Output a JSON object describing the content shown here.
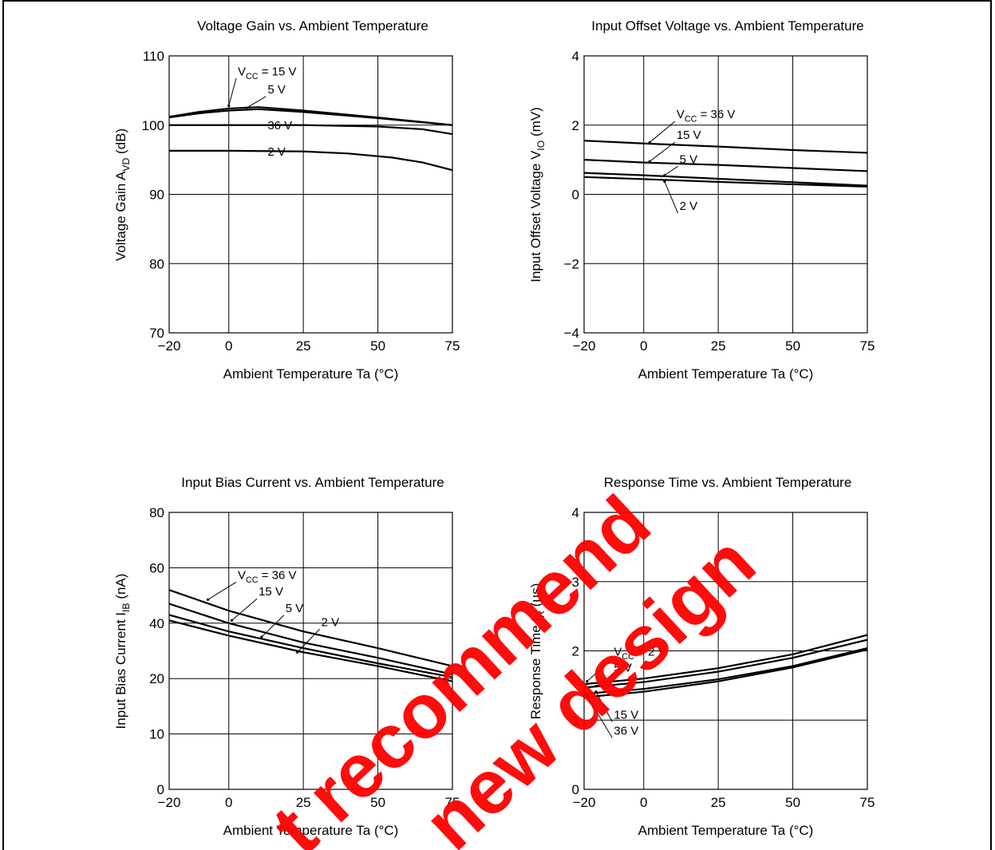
{
  "colors": {
    "line": "#000000",
    "watermark": "#ff0000"
  },
  "watermark": {
    "lines": [
      "t recommend",
      "new design"
    ]
  },
  "chart_data": [
    {
      "type": "line",
      "title": "Voltage Gain vs. Ambient Temperature",
      "xlabel": "Ambient Temperature  Ta  (°C)",
      "ylabel": {
        "main": "Voltage Gain  A",
        "sub": "VD",
        "tail": "  (dB)"
      },
      "xlim": [
        -20,
        75
      ],
      "ylim": [
        70,
        110
      ],
      "xticks": [
        -20,
        0,
        25,
        50,
        75
      ],
      "yticks": [
        70,
        80,
        90,
        100,
        110
      ],
      "xtick_labels": [
        "−20",
        "0",
        "25",
        "50",
        "75"
      ],
      "ytick_labels": [
        "70",
        "80",
        "90",
        "100",
        "110"
      ],
      "grid": true,
      "series": [
        {
          "name": "VCC = 15 V",
          "points": [
            [
              -20,
              101.2
            ],
            [
              -10,
              101.9
            ],
            [
              0,
              102.4
            ],
            [
              10,
              102.6
            ],
            [
              25,
              102.1
            ],
            [
              50,
              101.1
            ],
            [
              75,
              100.0
            ]
          ]
        },
        {
          "name": "5 V",
          "points": [
            [
              -20,
              101.1
            ],
            [
              -10,
              101.7
            ],
            [
              0,
              102.1
            ],
            [
              10,
              102.3
            ],
            [
              25,
              101.9
            ],
            [
              50,
              101.0
            ],
            [
              75,
              100.0
            ]
          ]
        },
        {
          "name": "36 V",
          "points": [
            [
              -20,
              100.0
            ],
            [
              0,
              100.0
            ],
            [
              25,
              100.0
            ],
            [
              50,
              99.8
            ],
            [
              65,
              99.4
            ],
            [
              75,
              98.7
            ]
          ]
        },
        {
          "name": "2 V",
          "points": [
            [
              -20,
              96.3
            ],
            [
              0,
              96.3
            ],
            [
              25,
              96.2
            ],
            [
              40,
              95.9
            ],
            [
              55,
              95.3
            ],
            [
              65,
              94.6
            ],
            [
              75,
              93.5
            ]
          ]
        }
      ],
      "annotations": [
        {
          "main": "V",
          "sub": "CC",
          "tail": " = 15 V",
          "x": 3,
          "y": 107.2,
          "tx": 0,
          "ty": 102.8
        },
        {
          "main": "5 V",
          "sub": "",
          "tail": "",
          "x": 13,
          "y": 104.6,
          "tx": 6,
          "ty": 102.5
        },
        {
          "main": "36 V",
          "sub": "",
          "tail": "",
          "x": 13,
          "y": 99.4
        },
        {
          "main": "2 V",
          "sub": "",
          "tail": "",
          "x": 13,
          "y": 95.6
        }
      ]
    },
    {
      "type": "line",
      "title": "Input Offset Voltage vs. Ambient Temperature",
      "xlabel": "Ambient Temperature  Ta  (°C)",
      "ylabel": {
        "main": "Input Offset Voltage  V",
        "sub": "IO",
        "tail": "  (mV)"
      },
      "xlim": [
        -20,
        75
      ],
      "ylim": [
        -4,
        4
      ],
      "xticks": [
        -20,
        0,
        25,
        50,
        75
      ],
      "yticks": [
        -4,
        -2,
        0,
        2,
        4
      ],
      "xtick_labels": [
        "−20",
        "0",
        "25",
        "50",
        "75"
      ],
      "ytick_labels": [
        "−4",
        "−2",
        "0",
        "2",
        "4"
      ],
      "grid": true,
      "series": [
        {
          "name": "VCC = 36 V",
          "points": [
            [
              -20,
              1.55
            ],
            [
              0,
              1.47
            ],
            [
              25,
              1.38
            ],
            [
              50,
              1.28
            ],
            [
              75,
              1.2
            ]
          ]
        },
        {
          "name": "15 V",
          "points": [
            [
              -20,
              1.0
            ],
            [
              0,
              0.92
            ],
            [
              25,
              0.85
            ],
            [
              50,
              0.76
            ],
            [
              75,
              0.67
            ]
          ]
        },
        {
          "name": "5 V",
          "points": [
            [
              -20,
              0.62
            ],
            [
              0,
              0.55
            ],
            [
              25,
              0.45
            ],
            [
              50,
              0.35
            ],
            [
              75,
              0.25
            ]
          ]
        },
        {
          "name": "2 V",
          "points": [
            [
              -20,
              0.5
            ],
            [
              0,
              0.44
            ],
            [
              25,
              0.36
            ],
            [
              50,
              0.29
            ],
            [
              75,
              0.22
            ]
          ]
        }
      ],
      "annotations": [
        {
          "main": "V",
          "sub": "CC",
          "tail": " = 36 V",
          "x": 11,
          "y": 2.2,
          "tx": 2,
          "ty": 1.5
        },
        {
          "main": "15 V",
          "sub": "",
          "tail": "",
          "x": 11,
          "y": 1.6,
          "tx": 2,
          "ty": 0.95
        },
        {
          "main": "5 V",
          "sub": "",
          "tail": "",
          "x": 12,
          "y": 0.9,
          "tx": 7,
          "ty": 0.55
        },
        {
          "main": "2 V",
          "sub": "",
          "tail": "",
          "x": 12,
          "y": -0.45,
          "tx": 7,
          "ty": 0.37
        }
      ]
    },
    {
      "type": "line",
      "title": "Input Bias Current vs. Ambient Temperature",
      "xlabel": "Ambient Temperature  Ta  (°C)",
      "ylabel": {
        "main": "Input Bias Current  I",
        "sub": "IB",
        "tail": "  (nA)"
      },
      "xlim": [
        -20,
        75
      ],
      "ylim": [
        0,
        80
      ],
      "xticks": [
        -20,
        0,
        25,
        50,
        75
      ],
      "yticks": [
        0,
        10,
        20,
        40,
        60,
        80
      ],
      "xtick_labels": [
        "−20",
        "0",
        "25",
        "50",
        "75"
      ],
      "ytick_labels": [
        "0",
        "10",
        "20",
        "40",
        "60",
        "80"
      ],
      "grid": true,
      "series": [
        {
          "name": "VCC = 36 V",
          "points": [
            [
              -20,
              52
            ],
            [
              0,
              44.5
            ],
            [
              25,
              37
            ],
            [
              50,
              31
            ],
            [
              75,
              24.5
            ]
          ]
        },
        {
          "name": "15 V",
          "points": [
            [
              -20,
              47
            ],
            [
              0,
              40
            ],
            [
              25,
              33
            ],
            [
              50,
              27.5
            ],
            [
              75,
              21.5
            ]
          ]
        },
        {
          "name": "5 V",
          "points": [
            [
              -20,
              43
            ],
            [
              0,
              37
            ],
            [
              25,
              31
            ],
            [
              50,
              25.5
            ],
            [
              75,
              20.5
            ]
          ]
        },
        {
          "name": "2 V",
          "points": [
            [
              -20,
              41
            ],
            [
              0,
              35.5
            ],
            [
              25,
              29.5
            ],
            [
              50,
              24.5
            ],
            [
              75,
              19.5
            ]
          ]
        }
      ],
      "annotations": [
        {
          "main": "V",
          "sub": "CC",
          "tail": " = 36 V",
          "x": 3,
          "y": 56,
          "tx": -7,
          "ty": 48.5
        },
        {
          "main": "15 V",
          "sub": "",
          "tail": "",
          "x": 10,
          "y": 50,
          "tx": 1,
          "ty": 41
        },
        {
          "main": "5 V",
          "sub": "",
          "tail": "",
          "x": 19,
          "y": 44,
          "tx": 11,
          "ty": 35
        },
        {
          "main": "2 V",
          "sub": "",
          "tail": "",
          "x": 31,
          "y": 39,
          "tx": 23,
          "ty": 29.5
        }
      ]
    },
    {
      "type": "line",
      "title": "Response Time vs. Ambient Temperature",
      "xlabel": "Ambient Temperature  Ta  (°C)",
      "ylabel": {
        "main": "Response Time  t",
        "sub": "R",
        "tail": "  (µs)"
      },
      "xlim": [
        -20,
        75
      ],
      "ylim": [
        0,
        4
      ],
      "xticks": [
        -20,
        0,
        25,
        50,
        75
      ],
      "yticks": [
        0,
        1,
        2,
        3,
        4
      ],
      "xtick_labels": [
        "−20",
        "0",
        "25",
        "50",
        "75"
      ],
      "ytick_labels": [
        "0",
        "1",
        "2",
        "3",
        "4"
      ],
      "grid": true,
      "series": [
        {
          "name": "VCC = 2 V",
          "points": [
            [
              -20,
              1.52
            ],
            [
              0,
              1.6
            ],
            [
              25,
              1.75
            ],
            [
              50,
              1.95
            ],
            [
              75,
              2.23
            ]
          ]
        },
        {
          "name": "5 V",
          "points": [
            [
              -20,
              1.47
            ],
            [
              0,
              1.55
            ],
            [
              25,
              1.7
            ],
            [
              50,
              1.9
            ],
            [
              75,
              2.16
            ]
          ]
        },
        {
          "name": "15 V",
          "points": [
            [
              -20,
              1.38
            ],
            [
              0,
              1.45
            ],
            [
              25,
              1.59
            ],
            [
              50,
              1.78
            ],
            [
              75,
              2.04
            ]
          ]
        },
        {
          "name": "36 V",
          "points": [
            [
              -20,
              1.33
            ],
            [
              0,
              1.41
            ],
            [
              25,
              1.56
            ],
            [
              50,
              1.76
            ],
            [
              75,
              2.02
            ]
          ]
        }
      ],
      "annotations": [
        {
          "main": "V",
          "sub": "CC",
          "tail": " = 2 V",
          "x": -10,
          "y": 1.93,
          "tx": -19,
          "ty": 1.56
        },
        {
          "main": "5 V",
          "sub": "",
          "tail": "",
          "x": -10,
          "y": 1.7,
          "tx": -16,
          "ty": 1.49
        },
        {
          "main": "15 V",
          "sub": "",
          "tail": "",
          "x": -10,
          "y": 1.02,
          "tx": -16,
          "ty": 1.41
        },
        {
          "main": "36 V",
          "sub": "",
          "tail": "",
          "x": -10,
          "y": 0.79,
          "tx": -19,
          "ty": 1.35
        }
      ]
    }
  ]
}
